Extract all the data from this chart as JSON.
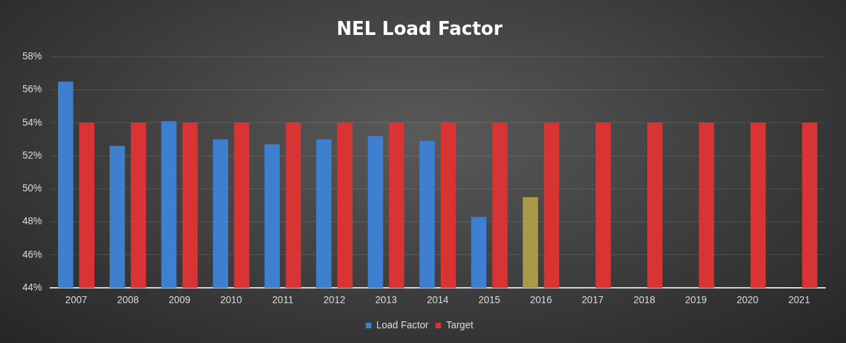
{
  "chart_data": {
    "type": "bar",
    "title": "NEL Load Factor",
    "categories": [
      "2007",
      "2008",
      "2009",
      "2010",
      "2011",
      "2012",
      "2013",
      "2014",
      "2015",
      "2016",
      "2017",
      "2018",
      "2019",
      "2020",
      "2021"
    ],
    "series": [
      {
        "name": "Load Factor",
        "color": "#3f7fd0",
        "colors": [
          "#3f7fd0",
          "#3f7fd0",
          "#3f7fd0",
          "#3f7fd0",
          "#3f7fd0",
          "#3f7fd0",
          "#3f7fd0",
          "#3f7fd0",
          "#3f7fd0",
          "#a89a4a",
          null,
          null,
          null,
          null,
          null
        ],
        "values": [
          56.5,
          52.6,
          54.1,
          53.0,
          52.7,
          53.0,
          53.2,
          52.9,
          48.3,
          49.5,
          null,
          null,
          null,
          null,
          null
        ]
      },
      {
        "name": "Target",
        "color": "#d93434",
        "values": [
          54,
          54,
          54,
          54,
          54,
          54,
          54,
          54,
          54,
          54,
          54,
          54,
          54,
          54,
          54
        ]
      }
    ],
    "ylim": [
      44,
      58
    ],
    "yticks": [
      {
        "value": 44,
        "label": "44%"
      },
      {
        "value": 46,
        "label": "46%"
      },
      {
        "value": 48,
        "label": "48%"
      },
      {
        "value": 50,
        "label": "50%"
      },
      {
        "value": 52,
        "label": "52%"
      },
      {
        "value": 54,
        "label": "54%"
      },
      {
        "value": 56,
        "label": "56%"
      },
      {
        "value": 58,
        "label": "58%"
      }
    ],
    "grid": "y",
    "legend": "bottom"
  }
}
